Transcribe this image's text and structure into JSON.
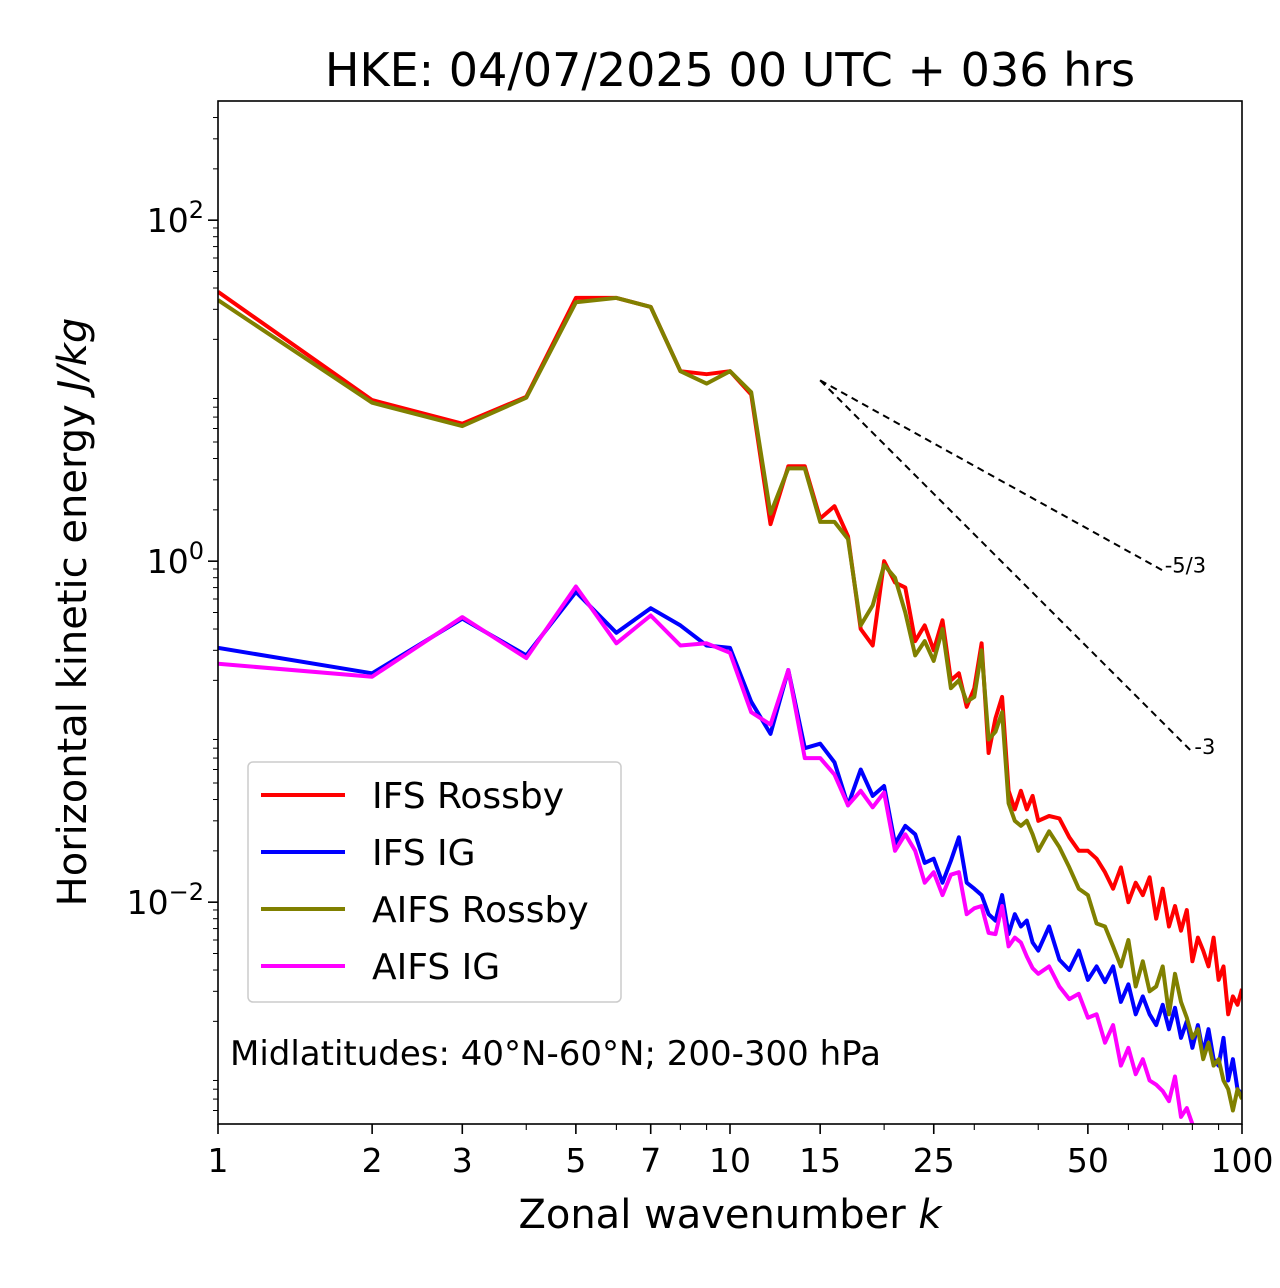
{
  "chart_data": {
    "type": "line",
    "title": "HKE: 04/07/2025 00 UTC + 036 hrs",
    "xlabel": "Zonal wavenumber",
    "xlabel_var": "k",
    "ylabel": "Horizontal kinetic energy",
    "ylabel_units": "J/kg",
    "xscale": "log",
    "yscale": "log",
    "xlim": [
      1,
      100
    ],
    "ylim": [
      0.0005,
      500
    ],
    "x_ticks": [
      1,
      2,
      3,
      5,
      7,
      10,
      15,
      25,
      50,
      100
    ],
    "x_tick_labels": [
      "1",
      "2",
      "3",
      "5",
      "7",
      "10",
      "15",
      "25",
      "50",
      "100"
    ],
    "y_ticks": [
      {
        "value": 100,
        "base": "10",
        "exp": "2"
      },
      {
        "value": 1,
        "base": "10",
        "exp": "0"
      },
      {
        "value": 0.01,
        "base": "10",
        "exp": "−2"
      }
    ],
    "annotation": "Midlatitudes: 40°N-60°N; 200-300 hPa",
    "legend_position": "lower-left",
    "reference_lines": [
      {
        "label": "-5/3",
        "slope": -1.6667,
        "x": [
          15,
          70
        ],
        "y0": 11.5
      },
      {
        "label": "-3",
        "slope": -3,
        "x": [
          15,
          80
        ],
        "y0": 11.5
      }
    ],
    "series": [
      {
        "name": "IFS Rossby",
        "color": "#ff0000",
        "x": [
          1,
          2,
          3,
          4,
          5,
          6,
          7,
          8,
          9,
          10,
          11,
          12,
          13,
          14,
          15,
          16,
          17,
          18,
          19,
          20,
          21,
          22,
          23,
          24,
          25,
          26,
          27,
          28,
          29,
          30,
          31,
          32,
          33,
          34,
          35,
          36,
          37,
          38,
          39,
          40,
          42,
          44,
          46,
          48,
          50,
          52,
          54,
          56,
          58,
          60,
          62,
          64,
          66,
          68,
          70,
          72,
          74,
          76,
          78,
          80,
          82,
          84,
          86,
          88,
          90,
          92,
          94,
          96,
          98,
          100
        ],
        "y": [
          38,
          8.8,
          6.4,
          9.2,
          35,
          35,
          31,
          13,
          12.5,
          13,
          9.5,
          1.65,
          3.6,
          3.6,
          1.78,
          2.1,
          1.4,
          0.4,
          0.32,
          1.0,
          0.75,
          0.7,
          0.34,
          0.42,
          0.3,
          0.45,
          0.2,
          0.22,
          0.14,
          0.18,
          0.33,
          0.075,
          0.12,
          0.16,
          0.045,
          0.035,
          0.045,
          0.035,
          0.042,
          0.03,
          0.032,
          0.031,
          0.024,
          0.02,
          0.02,
          0.018,
          0.015,
          0.012,
          0.016,
          0.01,
          0.013,
          0.011,
          0.014,
          0.008,
          0.012,
          0.0072,
          0.0095,
          0.0068,
          0.009,
          0.0045,
          0.0062,
          0.0052,
          0.0042,
          0.0062,
          0.0035,
          0.0042,
          0.0022,
          0.0028,
          0.0025,
          0.0031
        ]
      },
      {
        "name": "IFS IG",
        "color": "#0000ff",
        "x": [
          1,
          2,
          3,
          4,
          5,
          6,
          7,
          8,
          9,
          10,
          11,
          12,
          13,
          14,
          15,
          16,
          17,
          18,
          19,
          20,
          21,
          22,
          23,
          24,
          25,
          26,
          27,
          28,
          29,
          30,
          31,
          32,
          33,
          34,
          35,
          36,
          37,
          38,
          39,
          40,
          42,
          44,
          46,
          48,
          50,
          52,
          54,
          56,
          58,
          60,
          62,
          64,
          66,
          68,
          70,
          72,
          74,
          76,
          78,
          80,
          82,
          84,
          86,
          88,
          90,
          92,
          94,
          96,
          98,
          100
        ],
        "y": [
          0.31,
          0.22,
          0.46,
          0.28,
          0.66,
          0.38,
          0.53,
          0.42,
          0.32,
          0.31,
          0.15,
          0.097,
          0.23,
          0.08,
          0.085,
          0.066,
          0.037,
          0.06,
          0.042,
          0.048,
          0.022,
          0.028,
          0.025,
          0.017,
          0.018,
          0.013,
          0.0175,
          0.024,
          0.013,
          0.012,
          0.011,
          0.0085,
          0.0078,
          0.011,
          0.0065,
          0.0085,
          0.0072,
          0.0078,
          0.0058,
          0.0052,
          0.0072,
          0.0046,
          0.004,
          0.0052,
          0.0035,
          0.0042,
          0.0034,
          0.0042,
          0.0026,
          0.0033,
          0.0022,
          0.0028,
          0.0022,
          0.0019,
          0.0025,
          0.0018,
          0.0024,
          0.0016,
          0.002,
          0.0014,
          0.0019,
          0.0013,
          0.0018,
          0.0012,
          0.0011,
          0.0016,
          0.0009,
          0.0012,
          0.0008,
          0.00075
        ]
      },
      {
        "name": "AIFS Rossby",
        "color": "#808000",
        "x": [
          1,
          2,
          3,
          4,
          5,
          6,
          7,
          8,
          9,
          10,
          11,
          12,
          13,
          14,
          15,
          16,
          17,
          18,
          19,
          20,
          21,
          22,
          23,
          24,
          25,
          26,
          27,
          28,
          29,
          30,
          31,
          32,
          33,
          34,
          35,
          36,
          37,
          38,
          39,
          40,
          42,
          44,
          46,
          48,
          50,
          52,
          54,
          56,
          58,
          60,
          62,
          64,
          66,
          68,
          70,
          72,
          74,
          76,
          78,
          80,
          82,
          84,
          86,
          88,
          90,
          92,
          94,
          96,
          98,
          100
        ],
        "y": [
          34,
          8.5,
          6.2,
          9.1,
          33,
          35,
          31,
          13,
          11,
          13,
          9.8,
          1.9,
          3.5,
          3.5,
          1.7,
          1.7,
          1.35,
          0.42,
          0.55,
          0.95,
          0.8,
          0.5,
          0.28,
          0.34,
          0.26,
          0.4,
          0.18,
          0.2,
          0.15,
          0.16,
          0.3,
          0.09,
          0.1,
          0.13,
          0.038,
          0.03,
          0.028,
          0.03,
          0.025,
          0.02,
          0.026,
          0.021,
          0.016,
          0.012,
          0.011,
          0.0075,
          0.0072,
          0.0055,
          0.0042,
          0.006,
          0.0032,
          0.0045,
          0.003,
          0.0032,
          0.0042,
          0.0022,
          0.0038,
          0.0026,
          0.0021,
          0.0016,
          0.0018,
          0.0012,
          0.0015,
          0.0011,
          0.0012,
          0.0009,
          0.0008,
          0.0006,
          0.0008,
          0.0007
        ]
      },
      {
        "name": "AIFS IG",
        "color": "#ff00ff",
        "x": [
          1,
          2,
          3,
          4,
          5,
          6,
          7,
          8,
          9,
          10,
          11,
          12,
          13,
          14,
          15,
          16,
          17,
          18,
          19,
          20,
          21,
          22,
          23,
          24,
          25,
          26,
          27,
          28,
          29,
          30,
          31,
          32,
          33,
          34,
          35,
          36,
          37,
          38,
          39,
          40,
          42,
          44,
          46,
          48,
          50,
          52,
          54,
          56,
          58,
          60,
          62,
          64,
          66,
          68,
          70,
          72,
          74,
          76,
          78,
          80
        ],
        "y": [
          0.25,
          0.21,
          0.47,
          0.27,
          0.71,
          0.33,
          0.48,
          0.32,
          0.33,
          0.29,
          0.13,
          0.11,
          0.23,
          0.07,
          0.07,
          0.056,
          0.037,
          0.045,
          0.036,
          0.044,
          0.02,
          0.025,
          0.02,
          0.013,
          0.015,
          0.011,
          0.0145,
          0.015,
          0.0085,
          0.0092,
          0.0095,
          0.0066,
          0.0065,
          0.0095,
          0.0055,
          0.0062,
          0.0058,
          0.0048,
          0.0041,
          0.0038,
          0.0042,
          0.0032,
          0.0027,
          0.0029,
          0.0021,
          0.0022,
          0.0015,
          0.0019,
          0.0011,
          0.0014,
          0.00098,
          0.0012,
          0.0009,
          0.00085,
          0.00078,
          0.00068,
          0.00095,
          0.00055,
          0.00062,
          0.0005
        ]
      }
    ]
  }
}
